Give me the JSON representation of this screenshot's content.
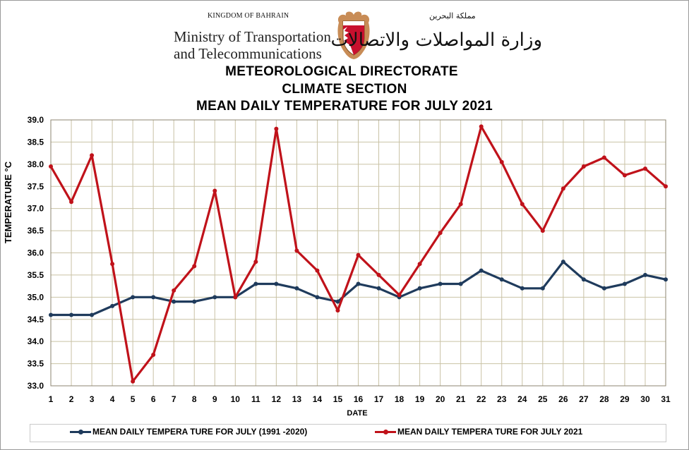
{
  "header": {
    "kingdom": "KINGDOM OF BAHRAIN",
    "ministry_line1": "Ministry of Transportation",
    "ministry_line2": "and Telecommunications",
    "arabic_kingdom": "مملكة البحرين",
    "arabic_ministry": "وزارة المواصلات والاتصالات"
  },
  "colors": {
    "normal": "#1f3b5c",
    "current": "#c0121a",
    "grid": "#c9c2a5",
    "emblem_red": "#c8102e"
  },
  "chart_data": {
    "type": "line",
    "title": "METEOROLOGICAL DIRECTORATE",
    "subtitle": "CLIMATE SECTION",
    "chart_title": "MEAN DAILY TEMPERATURE FOR JULY 2021",
    "xlabel": "DATE",
    "ylabel": "TEMPERATURE °C",
    "ylim": [
      33.0,
      39.0
    ],
    "ytick_step": 0.5,
    "yticks": [
      "33.0",
      "33.5",
      "34.0",
      "34.5",
      "35.0",
      "35.5",
      "36.0",
      "36.5",
      "37.0",
      "37.5",
      "38.0",
      "38.5",
      "39.0"
    ],
    "x": [
      1,
      2,
      3,
      4,
      5,
      6,
      7,
      8,
      9,
      10,
      11,
      12,
      13,
      14,
      15,
      16,
      17,
      18,
      19,
      20,
      21,
      22,
      23,
      24,
      25,
      26,
      27,
      28,
      29,
      30,
      31
    ],
    "grid": true,
    "legend_position": "bottom",
    "series": [
      {
        "name": "MEAN DAILY TEMPERA TURE FOR JULY (1991 -2020)",
        "color": "#1f3b5c",
        "values": [
          34.6,
          34.6,
          34.6,
          34.8,
          35.0,
          35.0,
          34.9,
          34.9,
          35.0,
          35.0,
          35.3,
          35.3,
          35.2,
          35.0,
          34.9,
          35.3,
          35.2,
          35.0,
          35.2,
          35.3,
          35.3,
          35.6,
          35.4,
          35.2,
          35.2,
          35.8,
          35.4,
          35.2,
          35.3,
          35.5,
          35.4
        ]
      },
      {
        "name": "MEAN DAILY TEMPERA TURE FOR JULY 2021",
        "color": "#c0121a",
        "values": [
          37.95,
          37.15,
          38.2,
          35.75,
          33.1,
          33.7,
          35.15,
          35.7,
          37.4,
          35.0,
          35.8,
          38.8,
          36.05,
          35.6,
          34.7,
          35.95,
          35.5,
          35.05,
          35.75,
          36.45,
          37.1,
          38.85,
          38.05,
          37.1,
          36.5,
          37.45,
          37.95,
          38.15,
          37.75,
          37.9,
          37.5
        ]
      }
    ]
  }
}
